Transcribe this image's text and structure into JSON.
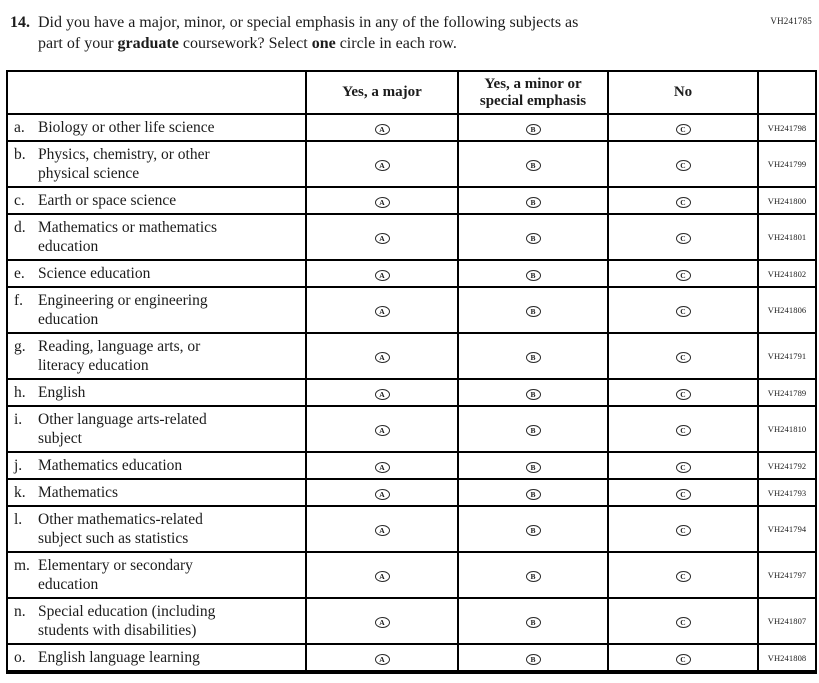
{
  "page_code": "VH241785",
  "question": {
    "number": "14.",
    "line1": "Did you have a major, minor, or special emphasis in any of the following subjects as",
    "line2_part1": "part of your ",
    "line2_bold1": "graduate",
    "line2_part2": " coursework? Select ",
    "line2_bold2": "one",
    "line2_part3": " circle in each row."
  },
  "table": {
    "columns": [
      "Yes, a major",
      "Yes, a minor or special emphasis",
      "No"
    ],
    "option_letters": [
      "A",
      "B",
      "C"
    ],
    "rows": [
      {
        "letter": "a.",
        "lines": [
          "Biology or other life science"
        ],
        "code": "VH241798"
      },
      {
        "letter": "b.",
        "lines": [
          "Physics, chemistry, or other",
          "physical science"
        ],
        "code": "VH241799"
      },
      {
        "letter": "c.",
        "lines": [
          "Earth or space science"
        ],
        "code": "VH241800"
      },
      {
        "letter": "d.",
        "lines": [
          "Mathematics or mathematics",
          "education"
        ],
        "code": "VH241801"
      },
      {
        "letter": "e.",
        "lines": [
          "Science education"
        ],
        "code": "VH241802"
      },
      {
        "letter": "f.",
        "lines": [
          "Engineering or engineering",
          "education"
        ],
        "code": "VH241806"
      },
      {
        "letter": "g.",
        "lines": [
          "Reading, language arts, or",
          "literacy education"
        ],
        "code": "VH241791"
      },
      {
        "letter": "h.",
        "lines": [
          "English"
        ],
        "code": "VH241789"
      },
      {
        "letter": "i.",
        "lines": [
          "Other language arts-related",
          "subject"
        ],
        "code": "VH241810"
      },
      {
        "letter": "j.",
        "lines": [
          "Mathematics education"
        ],
        "code": "VH241792"
      },
      {
        "letter": "k.",
        "lines": [
          "Mathematics"
        ],
        "code": "VH241793"
      },
      {
        "letter": "l.",
        "lines": [
          "Other mathematics-related",
          "subject such as statistics"
        ],
        "code": "VH241794"
      },
      {
        "letter": "m.",
        "lines": [
          "Elementary or secondary",
          "education"
        ],
        "code": "VH241797"
      },
      {
        "letter": "n.",
        "lines": [
          "Special education (including",
          "students with disabilities)"
        ],
        "code": "VH241807"
      },
      {
        "letter": "o.",
        "lines": [
          "English language learning"
        ],
        "code": "VH241808"
      }
    ]
  }
}
